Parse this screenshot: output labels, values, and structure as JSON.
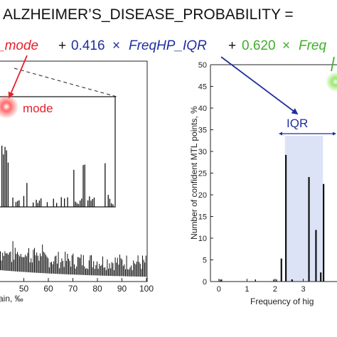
{
  "formula": {
    "line1": "ALZHEIMER’S_DISEASE_PROBABILITY =",
    "term1_var": "_mode",
    "plus1": "+",
    "coef2": "0.416",
    "times2": "×",
    "term2_var": "FreqHP_IQR",
    "plus2": "+",
    "coef3": "0.620",
    "times3": "×",
    "term3_var": "Freq"
  },
  "colors": {
    "red": "#e8202a",
    "blue": "#1f2f9e",
    "green": "#3fae2a",
    "iqr_band": "#dde3f6",
    "bar": "#111111"
  },
  "chart_data": [
    {
      "type": "bar",
      "title": "",
      "xlabel": "ain, ‰",
      "ylabel": "",
      "xlim": [
        40,
        100
      ],
      "xticks": [
        "50",
        "60",
        "70",
        "80",
        "90",
        "100"
      ],
      "annotations": [
        {
          "text": "mode"
        }
      ],
      "inset": true,
      "bars_note": "dense histogram, decreasing toward higher x"
    },
    {
      "type": "bar",
      "title": "",
      "xlabel": "Frequency of hig",
      "ylabel": "Number of confident MTL points, %",
      "ylim": [
        0,
        50
      ],
      "yticks": [
        "0",
        "5",
        "10",
        "15",
        "20",
        "25",
        "30",
        "35",
        "40",
        "45",
        "50"
      ],
      "xticks": [
        "0",
        "1",
        "2",
        "3"
      ],
      "annotations": [
        {
          "text": "IQR"
        }
      ],
      "iqr_range": [
        2.35,
        3.7
      ],
      "bars": [
        {
          "x": 2.22,
          "y": 5.3
        },
        {
          "x": 2.38,
          "y": 29.2
        },
        {
          "x": 2.6,
          "y": 0.5
        },
        {
          "x": 3.2,
          "y": 24.1
        },
        {
          "x": 3.45,
          "y": 11.9
        },
        {
          "x": 3.62,
          "y": 2.1
        },
        {
          "x": 3.72,
          "y": 22.5
        }
      ]
    }
  ]
}
